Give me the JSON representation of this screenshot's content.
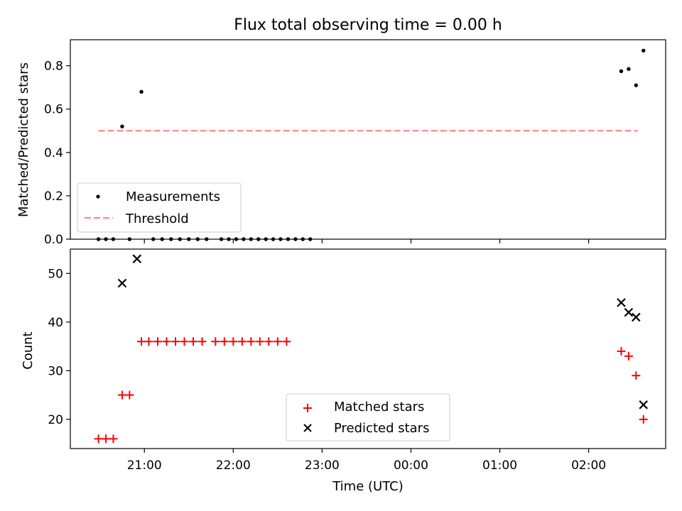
{
  "chart_data": [
    {
      "type": "scatter",
      "title": "Flux total observing time = 0.00 h",
      "xlabel": "",
      "ylabel": "Matched/Predicted stars",
      "ylim": [
        0,
        0.92
      ],
      "yticks": [
        "0.0",
        "0.2",
        "0.4",
        "0.6",
        "0.8"
      ],
      "ytick_values": [
        0,
        0.2,
        0.4,
        0.6,
        0.8
      ],
      "legend_position": "lower-left",
      "series": [
        {
          "name": "Measurements",
          "marker": "dot",
          "color": "#000000",
          "x": [
            "20:29",
            "20:34",
            "20:39",
            "20:45",
            "20:50",
            "20:58",
            "21:06",
            "21:12",
            "21:18",
            "21:24",
            "21:30",
            "21:36",
            "21:42",
            "21:52",
            "21:57",
            "22:02",
            "22:07",
            "22:12",
            "22:17",
            "22:22",
            "22:27",
            "22:32",
            "22:37",
            "22:42",
            "22:47",
            "22:52",
            "02:22",
            "02:27",
            "02:32",
            "02:37"
          ],
          "values": [
            0,
            0,
            0,
            0.52,
            0,
            0.68,
            0,
            0,
            0,
            0,
            0,
            0,
            0,
            0,
            0,
            0,
            0,
            0,
            0,
            0,
            0,
            0,
            0,
            0,
            0,
            0,
            0.775,
            0.785,
            0.71,
            0.87
          ]
        },
        {
          "name": "Threshold",
          "style": "dashed",
          "color": "#ff7f7f",
          "x": [
            "20:29",
            "02:33"
          ],
          "values": [
            0.5,
            0.5
          ]
        }
      ]
    },
    {
      "type": "scatter",
      "title": "",
      "xlabel": "Time (UTC)",
      "ylabel": "Count",
      "ylim": [
        14,
        55
      ],
      "yticks": [
        "20",
        "30",
        "40",
        "50"
      ],
      "ytick_values": [
        20,
        30,
        40,
        50
      ],
      "xlim": [
        "20:10",
        "02:52"
      ],
      "xticks": [
        "21:00",
        "22:00",
        "23:00",
        "00:00",
        "01:00",
        "02:00"
      ],
      "legend_position": "lower-center",
      "series": [
        {
          "name": "Matched stars",
          "marker": "plus",
          "color": "#ff0000",
          "x": [
            "20:29",
            "20:34",
            "20:39",
            "20:45",
            "20:50",
            "20:58",
            "21:03",
            "21:09",
            "21:15",
            "21:21",
            "21:27",
            "21:33",
            "21:39",
            "21:48",
            "21:54",
            "22:00",
            "22:06",
            "22:12",
            "22:18",
            "22:24",
            "22:30",
            "22:36",
            "02:22",
            "02:27",
            "02:32",
            "02:37"
          ],
          "values": [
            16,
            16,
            16,
            25,
            25,
            36,
            36,
            36,
            36,
            36,
            36,
            36,
            36,
            36,
            36,
            36,
            36,
            36,
            36,
            36,
            36,
            36,
            34,
            33,
            29,
            20
          ]
        },
        {
          "name": "Predicted stars",
          "marker": "x",
          "color": "#000000",
          "x": [
            "20:45",
            "20:55",
            "02:22",
            "02:27",
            "02:32",
            "02:37"
          ],
          "values": [
            48,
            53,
            44,
            42,
            41,
            23
          ]
        }
      ]
    }
  ]
}
